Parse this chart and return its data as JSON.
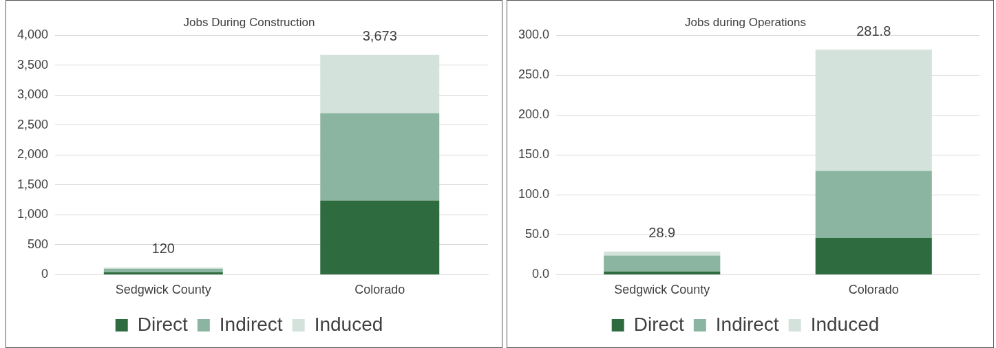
{
  "chart_data": [
    {
      "type": "bar",
      "title": "Jobs During Construction",
      "categories": [
        "Sedgwick County",
        "Colorado"
      ],
      "stacked": true,
      "series": [
        {
          "name": "Direct",
          "color": "#2e6b3f",
          "values": [
            40,
            1240
          ]
        },
        {
          "name": "Indirect",
          "color": "#8bb5a1",
          "values": [
            60,
            1460
          ]
        },
        {
          "name": "Induced",
          "color": "#d3e2da",
          "values": [
            20,
            973
          ]
        }
      ],
      "totals": [
        "120",
        "3,673"
      ],
      "ylim": [
        0,
        4000
      ],
      "yticks": [
        {
          "value": 0,
          "label": "0"
        },
        {
          "value": 500,
          "label": "500"
        },
        {
          "value": 1000,
          "label": "1,000"
        },
        {
          "value": 1500,
          "label": "1,500"
        },
        {
          "value": 2000,
          "label": "2,000"
        },
        {
          "value": 2500,
          "label": "2,500"
        },
        {
          "value": 3000,
          "label": "3,000"
        },
        {
          "value": 3500,
          "label": "3,500"
        },
        {
          "value": 4000,
          "label": "4,000"
        }
      ],
      "grid": "y",
      "legend": "bottom"
    },
    {
      "type": "bar",
      "title": "Jobs during Operations",
      "categories": [
        "Sedgwick County",
        "Colorado"
      ],
      "stacked": true,
      "series": [
        {
          "name": "Direct",
          "color": "#2e6b3f",
          "values": [
            4,
            46
          ]
        },
        {
          "name": "Indirect",
          "color": "#8bb5a1",
          "values": [
            20,
            84
          ]
        },
        {
          "name": "Induced",
          "color": "#d3e2da",
          "values": [
            5,
            152
          ]
        }
      ],
      "totals": [
        "28.9",
        "281.8"
      ],
      "ylim": [
        0,
        300
      ],
      "yticks": [
        {
          "value": 0,
          "label": "0.0"
        },
        {
          "value": 50,
          "label": "50.0"
        },
        {
          "value": 100,
          "label": "100.0"
        },
        {
          "value": 150,
          "label": "150.0"
        },
        {
          "value": 200,
          "label": "200.0"
        },
        {
          "value": 250,
          "label": "250.0"
        },
        {
          "value": 300,
          "label": "300.0"
        }
      ],
      "grid": "y",
      "legend": "bottom"
    }
  ]
}
